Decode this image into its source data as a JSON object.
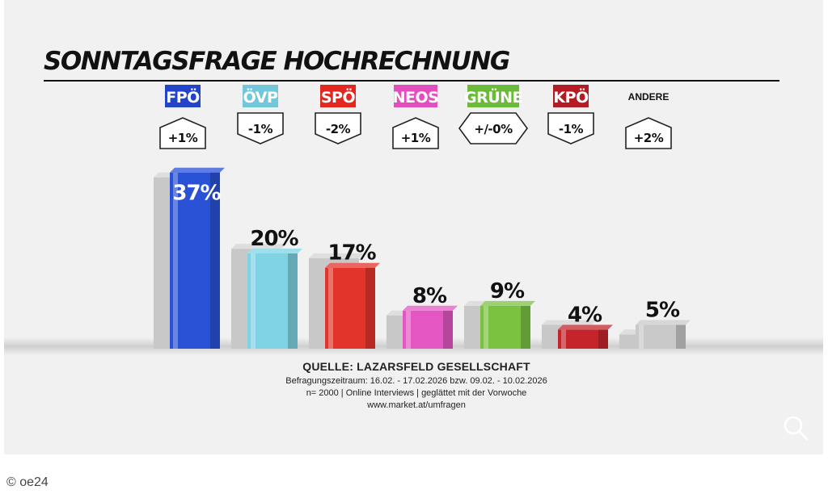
{
  "chart_data": {
    "type": "bar",
    "title": "SONNTAGSFRAGE HOCHRECHNUNG",
    "categories": [
      "FPÖ",
      "ÖVP",
      "SPÖ",
      "NEOS",
      "GRÜNE",
      "KPÖ",
      "ANDERE"
    ],
    "values": [
      37,
      20,
      17,
      8,
      9,
      4,
      5
    ],
    "value_labels": [
      "37%",
      "20%",
      "17%",
      "8%",
      "9%",
      "4%",
      "5%"
    ],
    "previous_values": [
      36,
      21,
      19,
      7,
      9,
      5,
      3
    ],
    "changes": [
      "+1%",
      "-1%",
      "-2%",
      "+1%",
      "+/-0%",
      "-1%",
      "+2%"
    ],
    "change_direction": [
      "up",
      "down",
      "down",
      "up",
      "flat",
      "down",
      "up"
    ],
    "colors": [
      "#2a52d6",
      "#7fd3e4",
      "#e3342b",
      "#e457c3",
      "#7cc241",
      "#c6242b",
      "#c9c9c9"
    ],
    "label_colors": [
      "#2144c8",
      "#73c7dc",
      "#e1271f",
      "#e24ebd",
      "#6cba3a",
      "#b41c24",
      null
    ],
    "ylim": [
      0,
      40
    ],
    "grid": false
  },
  "footer": {
    "source": "QUELLE: LAZARSFELD GESELLSCHAFT",
    "period": "Befragungszeitraum: 16.02. - 17.02.2026  bzw. 09.02. - 10.02.2026",
    "sample": "n= 2000 | Online Interviews | geglättet mit der Vorwoche",
    "url": "www.market.at/umfragen"
  },
  "credit": "© oe24",
  "icons": {
    "zoom": "magnifier-icon"
  }
}
